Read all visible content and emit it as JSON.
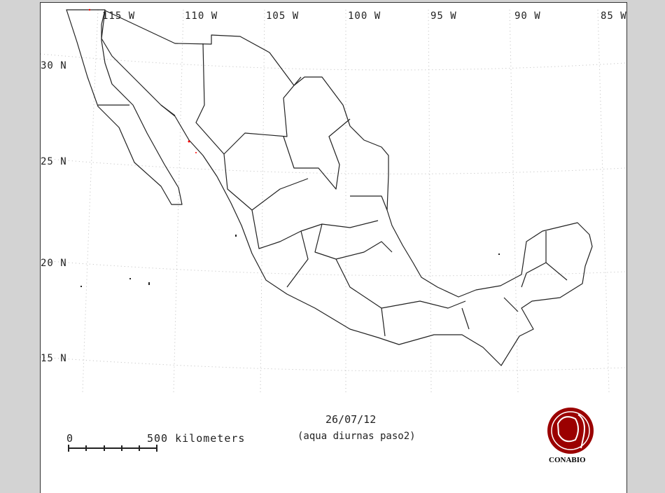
{
  "map": {
    "longitude_labels": [
      "115 W",
      "110 W",
      "105 W",
      "100 W",
      "95 W",
      "90 W",
      "85 W"
    ],
    "latitude_labels": [
      "30 N",
      "25 N",
      "20 N",
      "15 N"
    ],
    "date": "26/07/12",
    "subtitle": "(aqua diurnas paso2)",
    "scale_bar": {
      "start": "0",
      "end": "500 kilometers",
      "divisions": 5
    },
    "logo": {
      "text": "CONABIO",
      "color": "#9b0000"
    },
    "colors": {
      "background": "#d3d3d3",
      "map": "#ffffff",
      "boundary": "#222222",
      "graticule": "#bbbbbb",
      "hotspot": "#ff0000"
    }
  }
}
